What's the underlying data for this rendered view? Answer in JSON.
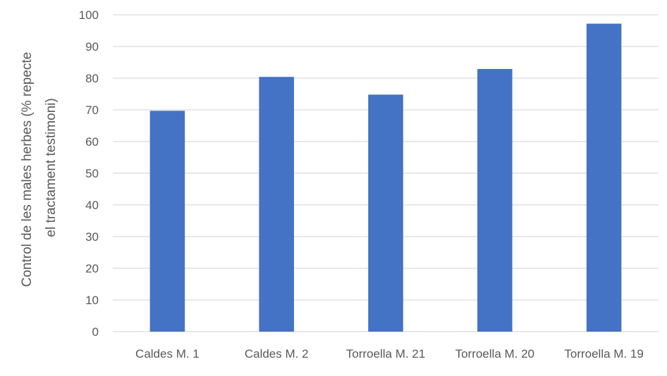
{
  "chart_data": {
    "type": "bar",
    "categories": [
      "Caldes M. 1",
      "Caldes M. 2",
      "Torroella M. 21",
      "Torroella M. 20",
      "Torroella M. 19"
    ],
    "values": [
      69.7,
      80.4,
      74.8,
      82.9,
      97.2
    ],
    "ylabel_lines": [
      "Control de les males herbes (% repecte",
      "el tractament testimoni)"
    ],
    "ylim": [
      0,
      100
    ],
    "yticks": [
      "0",
      "10",
      "20",
      "30",
      "40",
      "50",
      "60",
      "70",
      "80",
      "90",
      "100"
    ],
    "grid": true,
    "legend": "none",
    "bar_color": "#4472C4",
    "grid_color": "#D9D9D9"
  }
}
